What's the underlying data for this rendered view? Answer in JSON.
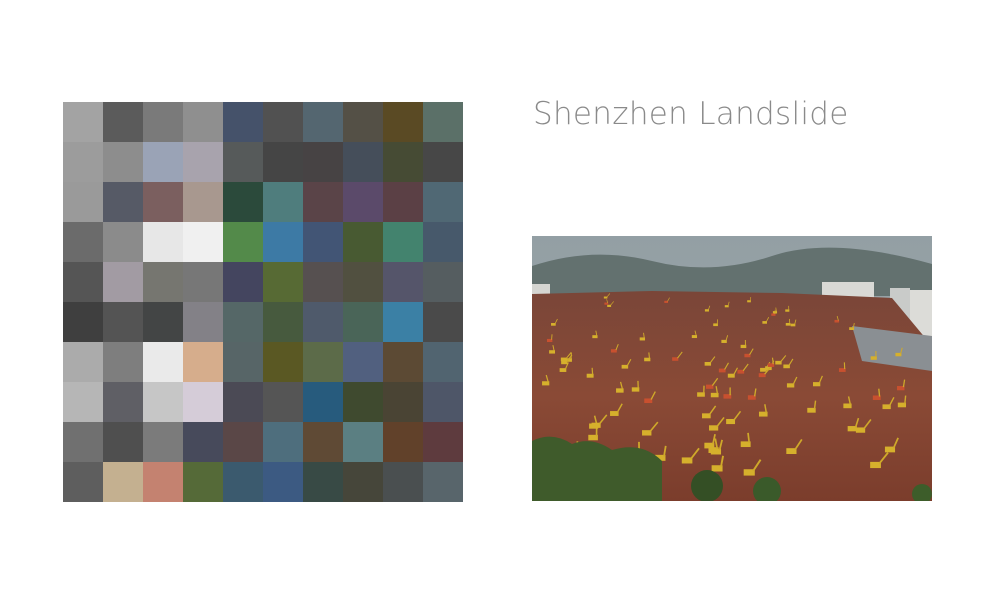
{
  "title": "Shenzhen Landslide",
  "mosaic": {
    "rows": 10,
    "cols": 10,
    "colors": [
      [
        "#a3a3a3",
        "#5b5b5b",
        "#7a7a7a",
        "#8f8f8f",
        "#45526a",
        "#515151",
        "#546670",
        "#545046",
        "#5a4a24",
        "#5b7068"
      ],
      [
        "#9c9c9c",
        "#8d8d8d",
        "#9aa3b6",
        "#a8a3ad",
        "#565a5a",
        "#454545",
        "#474344",
        "#454e5a",
        "#464b34",
        "#474747"
      ],
      [
        "#9a9a9a",
        "#565a66",
        "#7b5f5f",
        "#a8988f",
        "#2b4a3b",
        "#4f7d7d",
        "#5a4448",
        "#5b4a6a",
        "#5b4045",
        "#506874"
      ],
      [
        "#6b6b6b",
        "#8b8b8b",
        "#e7e7e7",
        "#f0f0f0",
        "#538a4a",
        "#3d7aa5",
        "#425575",
        "#485a32",
        "#43836e",
        "#47596b"
      ],
      [
        "#555555",
        "#a29ba3",
        "#767670",
        "#777777",
        "#44455f",
        "#576a34",
        "#565050",
        "#515040",
        "#55556a",
        "#555d60"
      ],
      [
        "#3f3f3f",
        "#545454",
        "#434545",
        "#838187",
        "#556767",
        "#475a3e",
        "#4f5a6b",
        "#4a6558",
        "#3b80a5",
        "#4a4a4a"
      ],
      [
        "#ababab",
        "#7e7e7e",
        "#eaeaea",
        "#d6ad8c",
        "#576567",
        "#5a5823",
        "#5c6b49",
        "#51607f",
        "#5c4a34",
        "#516470"
      ],
      [
        "#b6b6b6",
        "#5f5f65",
        "#c6c6c6",
        "#d5ccd8",
        "#4b4a55",
        "#555555",
        "#275b7d",
        "#3f4a2f",
        "#4a4434",
        "#4e5668"
      ],
      [
        "#707070",
        "#4f4f4f",
        "#7b7b7b",
        "#474a5b",
        "#5a4747",
        "#4e6e7d",
        "#5f4a35",
        "#5b7f82",
        "#61412a",
        "#5e3b3e"
      ],
      [
        "#5e5e5e",
        "#c4b090",
        "#c48270",
        "#556a38",
        "#3b5a6e",
        "#3c5a82",
        "#384a45",
        "#46463a",
        "#4a4f50",
        "#58656b"
      ]
    ]
  },
  "photo": {
    "colors": {
      "sky": "#8e9aa0",
      "hills": "#5e6d6b",
      "mud": "#8a4a36",
      "mud_dark": "#6a3426",
      "foliage": "#3c5a2a",
      "machine": "#d7b12a",
      "building": "#d8d8d4"
    }
  }
}
